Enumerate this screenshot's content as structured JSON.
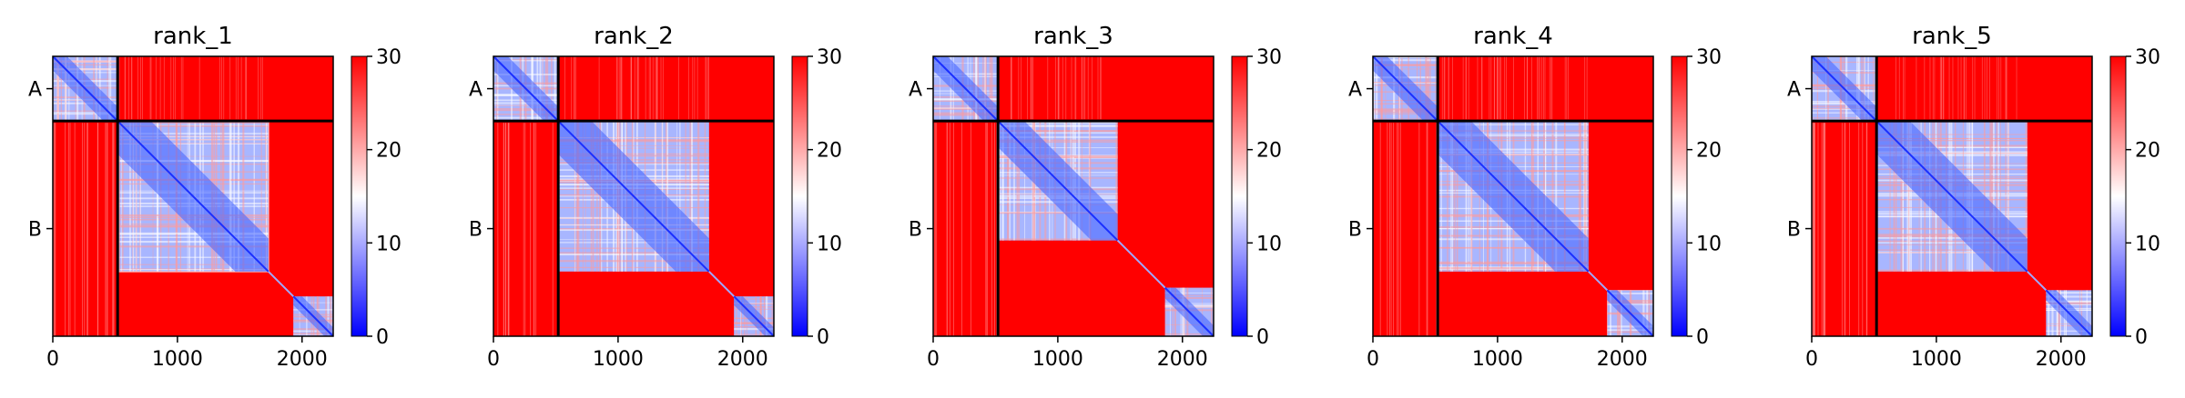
{
  "chart_data": {
    "type": "heatmap",
    "colorbar": {
      "colormap": "bwr",
      "colors": [
        "#0000ff",
        "#ffffff",
        "#ff0000"
      ],
      "range": [
        0,
        30
      ],
      "ticks": [
        "0",
        "10",
        "20",
        "30"
      ]
    },
    "x_ticks": [
      "0",
      "1000",
      "2000"
    ],
    "x_tick_values": [
      0,
      1000,
      2000
    ],
    "x_range": [
      0,
      2250
    ],
    "chain_labels": [
      "A",
      "B"
    ],
    "chain_boundary": 520,
    "panels": [
      {
        "title": "rank_1",
        "domain_ends": [
          1730,
          1930
        ]
      },
      {
        "title": "rank_2",
        "domain_ends": [
          1730,
          1930
        ]
      },
      {
        "title": "rank_3",
        "domain_ends": [
          1480,
          1860
        ]
      },
      {
        "title": "rank_4",
        "domain_ends": [
          1730,
          1880
        ]
      },
      {
        "title": "rank_5",
        "domain_ends": [
          1730,
          1880
        ]
      }
    ]
  }
}
